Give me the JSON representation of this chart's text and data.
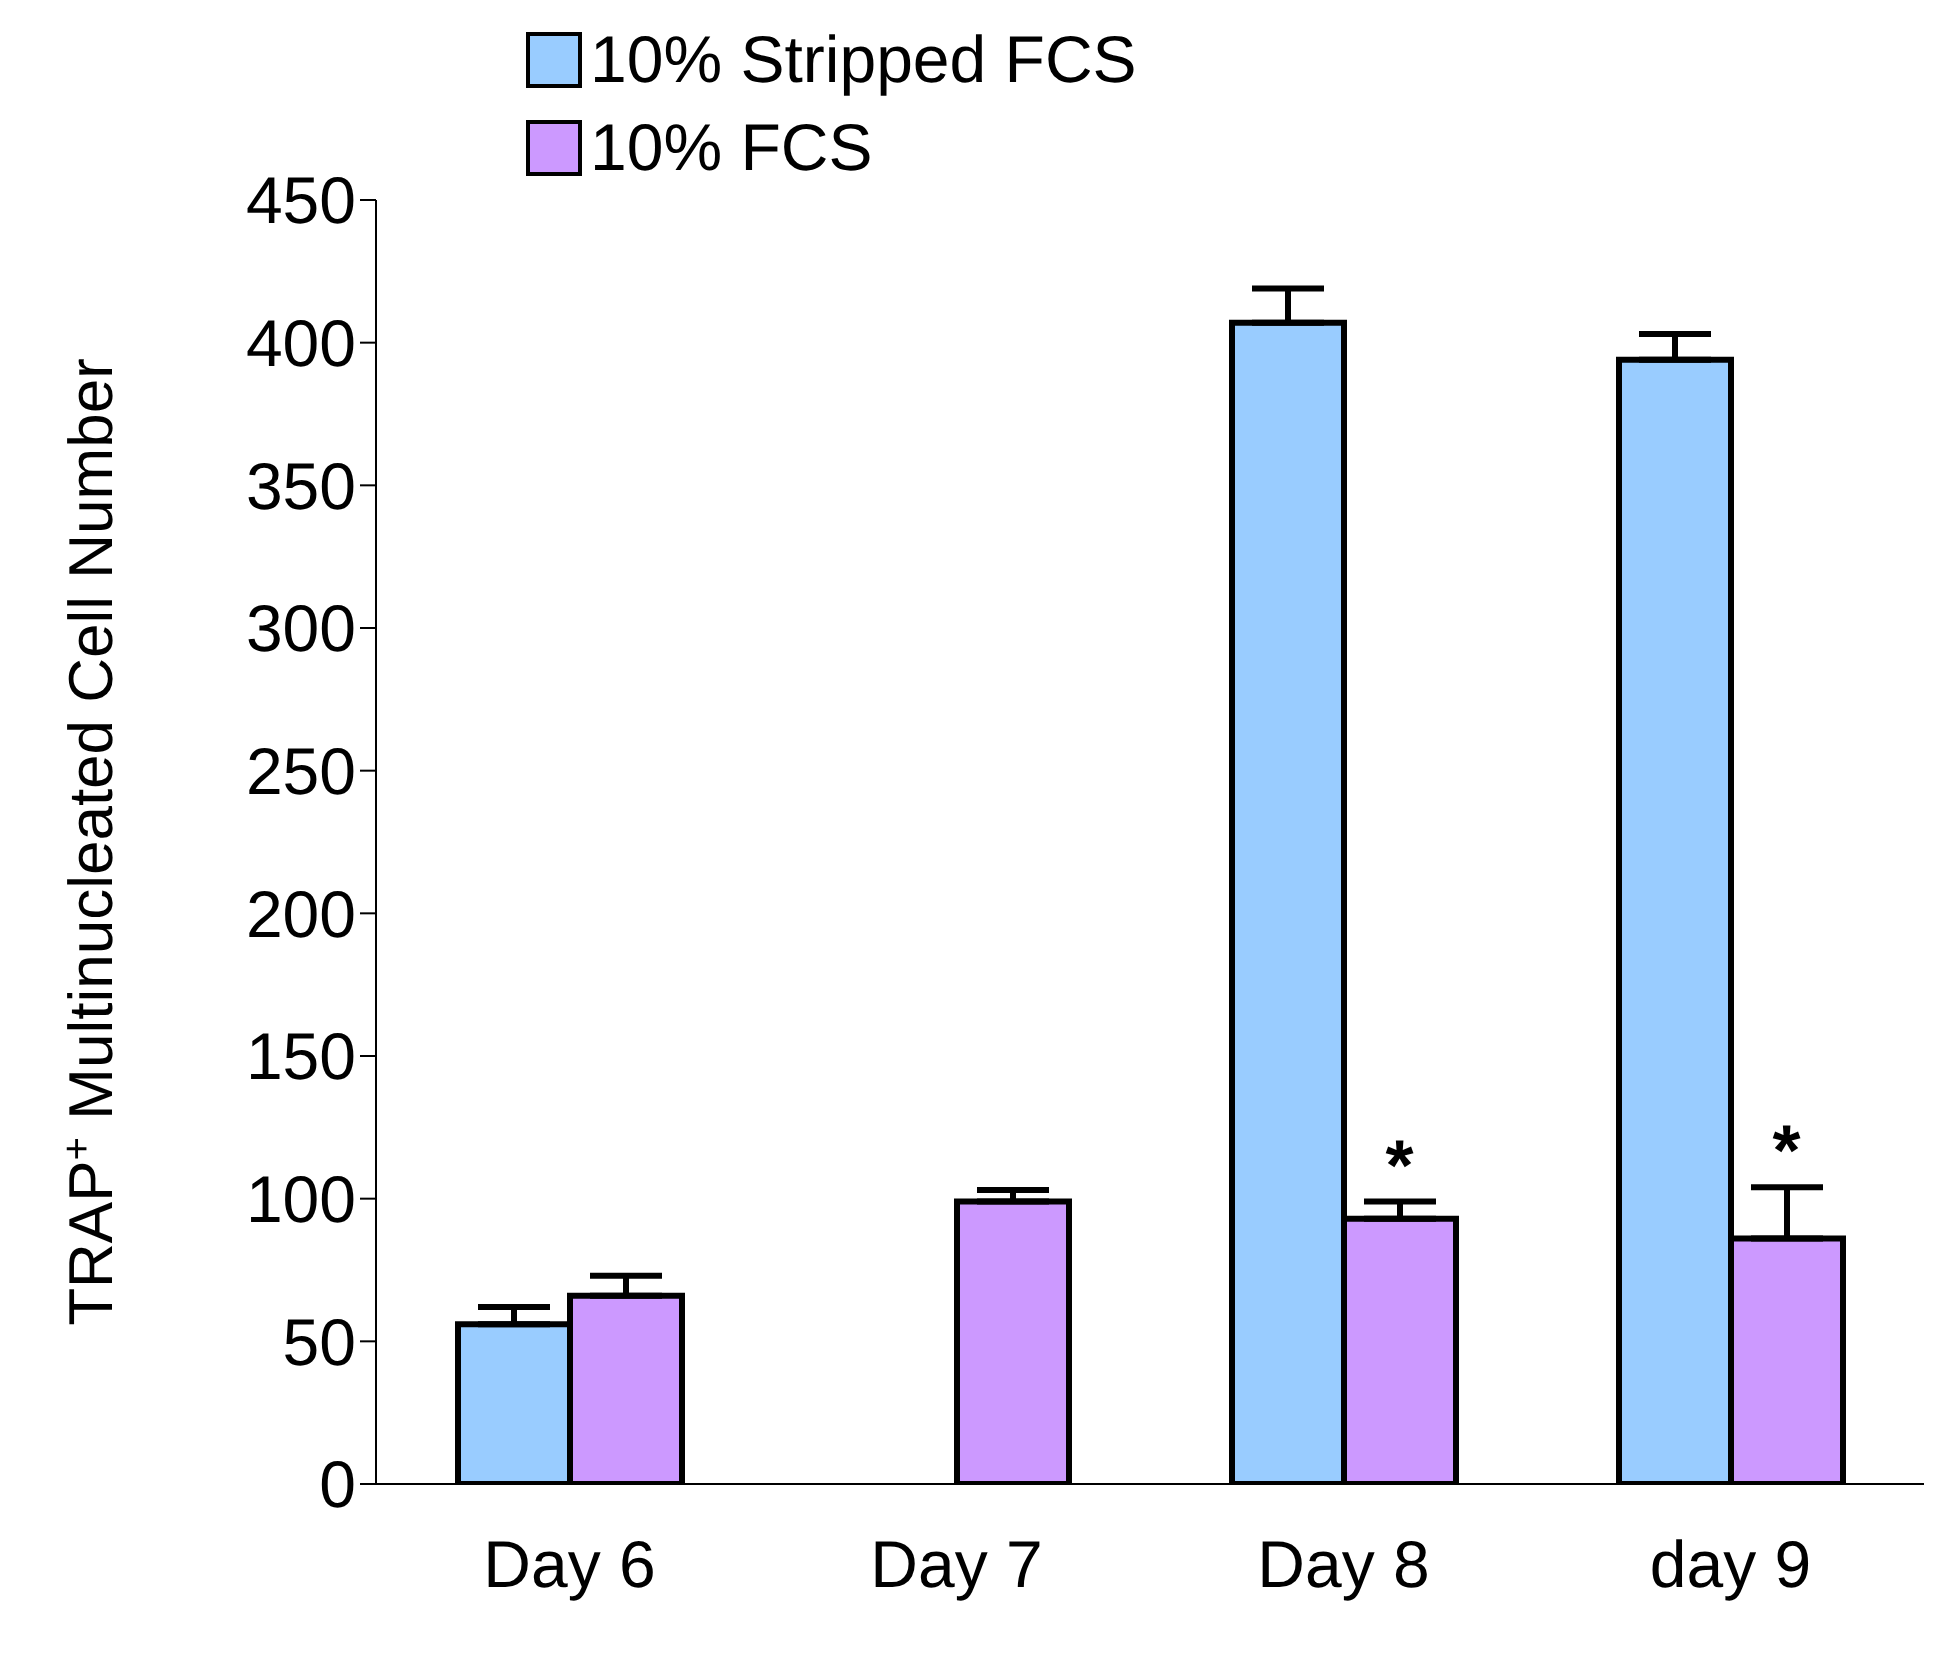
{
  "chart_data": {
    "type": "bar",
    "ylabel": "TRAP$^{+}$ Multinucleated Cell Number",
    "categories": [
      "Day 6",
      "Day 7",
      "Day 8",
      "day 9"
    ],
    "series": [
      {
        "name": "10% Stripped FCS",
        "color": "#99ccff",
        "values": [
          56,
          null,
          407,
          394
        ],
        "errors": [
          [
            56,
            62
          ],
          null,
          [
            407,
            419
          ],
          [
            394,
            403
          ]
        ]
      },
      {
        "name": "10% FCS",
        "color": "#cc99ff",
        "values": [
          66,
          99,
          93,
          86
        ],
        "errors": [
          [
            66,
            73
          ],
          [
            99,
            103
          ],
          [
            93,
            99
          ],
          [
            86,
            104
          ]
        ]
      }
    ],
    "ylim": [
      0,
      450
    ],
    "yticks": [
      0,
      50,
      100,
      150,
      200,
      250,
      300,
      350,
      400,
      450
    ],
    "grid": false,
    "legend": "top left",
    "annotations": [
      {
        "text": "*",
        "x": "Day 8",
        "y": 99
      },
      {
        "text": "*",
        "x": "day 9",
        "y": 104
      }
    ]
  }
}
